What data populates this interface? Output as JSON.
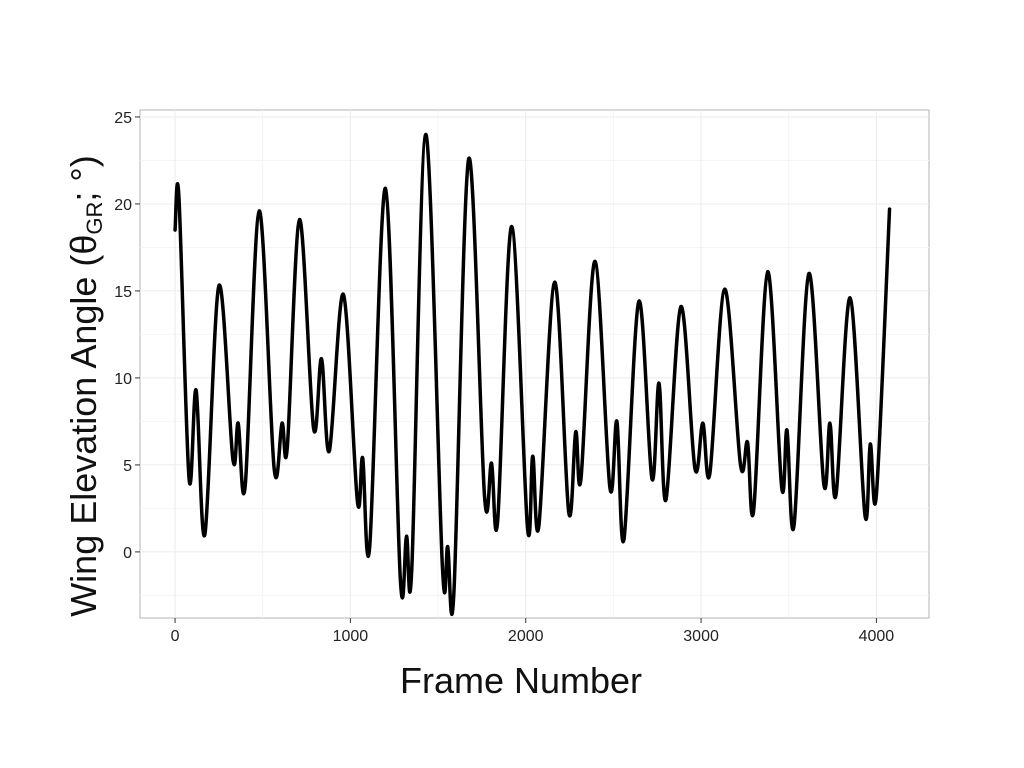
{
  "chart_data": {
    "type": "line",
    "title": "",
    "xlabel": "Frame Number",
    "ylabel_parts": {
      "prefix": "Wing Elevation Angle (θ",
      "subscript": "GR",
      "suffix": "; °)"
    },
    "xlim": [
      -200,
      4300
    ],
    "ylim": [
      -3.8,
      25.4
    ],
    "x_ticks": [
      0,
      1000,
      2000,
      3000,
      4000
    ],
    "x_tick_labels": [
      "0",
      "1000",
      "2000",
      "3000",
      "4000"
    ],
    "y_ticks": [
      0,
      5,
      10,
      15,
      20,
      25
    ],
    "y_tick_labels": [
      "0",
      "5",
      "10",
      "15",
      "20",
      "25"
    ],
    "grid": true,
    "series": [
      {
        "color": "#000000",
        "x": [
          0,
          22,
          80,
          120,
          170,
          250,
          330,
          360,
          400,
          480,
          565,
          610,
          640,
          710,
          790,
          835,
          880,
          960,
          1040,
          1070,
          1110,
          1200,
          1285,
          1320,
          1350,
          1430,
          1525,
          1555,
          1590,
          1675,
          1765,
          1805,
          1840,
          1920,
          2010,
          2040,
          2075,
          2165,
          2245,
          2285,
          2315,
          2395,
          2480,
          2520,
          2560,
          2645,
          2720,
          2760,
          2800,
          2885,
          2965,
          3010,
          3050,
          3135,
          3225,
          3265,
          3300,
          3380,
          3460,
          3490,
          3530,
          3615,
          3700,
          3735,
          3770,
          3850,
          3935,
          3965,
          4000,
          4075
        ],
        "y": [
          18.5,
          20.4,
          4.2,
          9.3,
          1.0,
          15.3,
          5.3,
          7.4,
          3.8,
          19.6,
          4.8,
          7.4,
          6.0,
          19.1,
          7.1,
          11.1,
          5.8,
          14.8,
          2.9,
          5.4,
          0.3,
          20.9,
          -1.6,
          0.9,
          -1.0,
          24.0,
          -0.9,
          0.3,
          -2.4,
          22.6,
          3.2,
          5.1,
          1.8,
          18.7,
          1.4,
          5.5,
          1.5,
          15.5,
          2.3,
          6.9,
          4.2,
          16.7,
          3.7,
          7.5,
          0.7,
          14.4,
          4.2,
          9.7,
          3.0,
          14.1,
          4.8,
          7.4,
          4.5,
          15.1,
          5.0,
          6.3,
          2.4,
          16.1,
          3.7,
          7.0,
          1.5,
          16.0,
          3.9,
          7.4,
          3.3,
          14.6,
          2.1,
          6.2,
          3.3,
          19.7
        ]
      }
    ]
  }
}
